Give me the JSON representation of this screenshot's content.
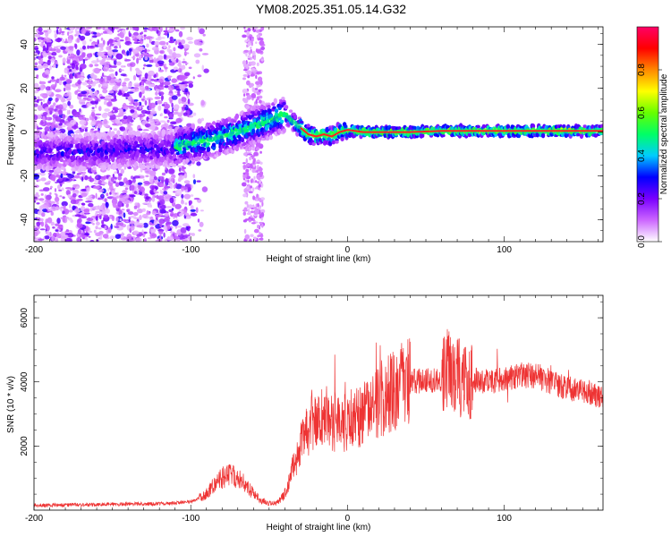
{
  "title": "YM08.2025.351.05.14.G32",
  "chart_data": [
    {
      "type": "heatmap",
      "title": "YM08.2025.351.05.14.G32",
      "xlabel": "Height of straight line (km)",
      "ylabel": "Frequency (Hz)",
      "xlim": [
        -200,
        163
      ],
      "ylim": [
        -50,
        48
      ],
      "x_ticks": [
        "-200",
        "-100",
        "0",
        "100"
      ],
      "y_ticks": [
        "-40",
        "-20",
        "0",
        "20",
        "40"
      ],
      "colorbar": {
        "label": "Normalized spectral amplitude",
        "range": [
          0,
          1
        ],
        "ticks": [
          "0.0",
          "0.2",
          "0.4",
          "0.6",
          "0.8"
        ],
        "colors": [
          "#ffffff",
          "#cc66ff",
          "#7a00ff",
          "#0000ff",
          "#00ccff",
          "#00ff66",
          "#66ff00",
          "#ffff00",
          "#ff8800",
          "#ff0000",
          "#ff0066"
        ]
      },
      "peak_frequency_track": {
        "x": [
          -180,
          -160,
          -140,
          -120,
          -110,
          -100,
          -90,
          -80,
          -70,
          -60,
          -50,
          -45,
          -40,
          -35,
          -30,
          -25,
          -20,
          -15,
          -10,
          -5,
          0,
          10,
          20,
          40,
          60,
          80,
          100,
          120,
          140,
          160
        ],
        "y": [
          -9,
          -9,
          -8,
          -8,
          -7,
          -5,
          -4,
          -2,
          0,
          3,
          5,
          7,
          8,
          5,
          2,
          -1,
          -2,
          -1,
          -2,
          0,
          1,
          0,
          0,
          0,
          0.5,
          0.5,
          0.5,
          0.5,
          0.5,
          0.5
        ]
      }
    },
    {
      "type": "line",
      "xlabel": "Height of straight line (km)",
      "ylabel": "SNR (10 * v/v)",
      "xlim": [
        -200,
        163
      ],
      "ylim": [
        0,
        6700
      ],
      "x_ticks": [
        "-200",
        "-100",
        "0",
        "100"
      ],
      "y_ticks": [
        "2000",
        "4000",
        "6000"
      ],
      "color": "#ee3333",
      "series": [
        {
          "name": "SNR",
          "x": [
            -200,
            -180,
            -160,
            -140,
            -120,
            -100,
            -90,
            -85,
            -80,
            -75,
            -70,
            -65,
            -60,
            -55,
            -50,
            -45,
            -40,
            -35,
            -30,
            -25,
            -20,
            -15,
            -10,
            -5,
            0,
            10,
            20,
            30,
            40,
            50,
            60,
            65,
            70,
            75,
            80,
            90,
            100,
            110,
            120,
            130,
            140,
            150,
            163
          ],
          "values": [
            150,
            160,
            170,
            190,
            200,
            250,
            500,
            800,
            1000,
            1100,
            1050,
            800,
            500,
            300,
            220,
            220,
            500,
            1300,
            2000,
            2500,
            2800,
            2900,
            2800,
            2700,
            2800,
            3000,
            3400,
            3800,
            4000,
            4050,
            4100,
            4500,
            4200,
            4000,
            4050,
            4000,
            4050,
            4200,
            4200,
            4000,
            3800,
            3700,
            3500
          ]
        }
      ]
    }
  ]
}
